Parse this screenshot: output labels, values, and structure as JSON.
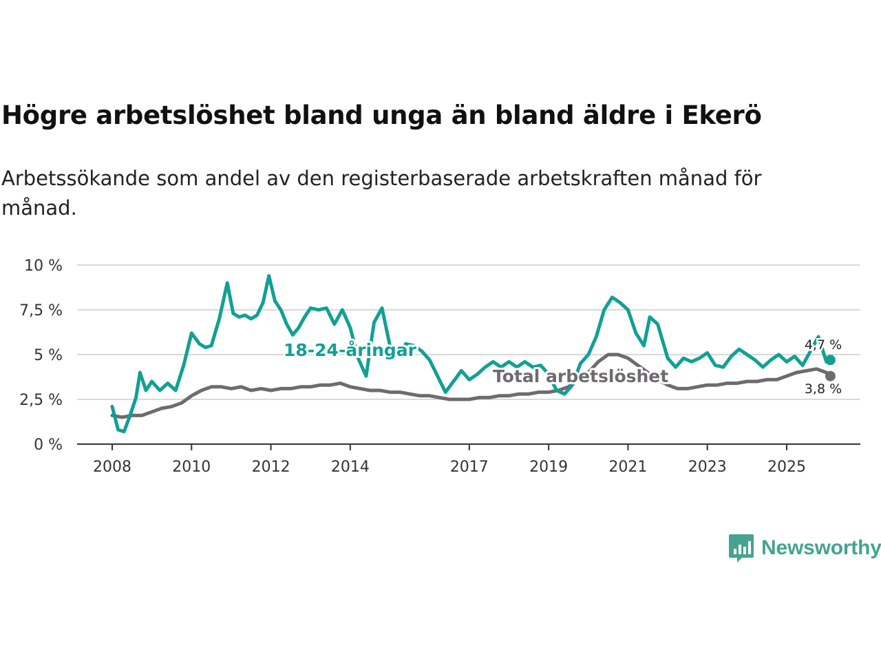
{
  "header": {
    "title": "Högre arbetslöshet bland unga än bland äldre i Ekerö",
    "subtitle": "Arbetssökande som andel av den registerbaserade arbetskraften månad för månad."
  },
  "brand": {
    "name": "Newsworthy",
    "icon": "newsworthy-logo-icon",
    "color": "#45a38f"
  },
  "chart_data": {
    "type": "line",
    "title": "Högre arbetslöshet bland unga än bland äldre i Ekerö",
    "ylim": [
      0,
      10
    ],
    "yticks": [
      0,
      2.5,
      5,
      7.5,
      10
    ],
    "ytick_labels": [
      "0 %",
      "2,5 %",
      "5 %",
      "7,5 %",
      "10 %"
    ],
    "xlim": [
      2008,
      2026.8
    ],
    "xticks": [
      2008,
      2010,
      2012,
      2014,
      2017,
      2019,
      2021,
      2023,
      2025
    ],
    "xtick_labels": [
      "2008",
      "2010",
      "2012",
      "2014",
      "2017",
      "2019",
      "2021",
      "2023",
      "2025"
    ],
    "grid": true,
    "series": [
      {
        "name": "Total arbetslöshet",
        "label": "Total arbetslöshet",
        "color": "#6e6b70",
        "end_label": "3,8 %",
        "end_value": 3.8,
        "points": [
          [
            2008.0,
            1.6
          ],
          [
            2008.25,
            1.5
          ],
          [
            2008.5,
            1.6
          ],
          [
            2008.75,
            1.6
          ],
          [
            2009.0,
            1.8
          ],
          [
            2009.25,
            2.0
          ],
          [
            2009.5,
            2.1
          ],
          [
            2009.75,
            2.3
          ],
          [
            2010.0,
            2.7
          ],
          [
            2010.25,
            3.0
          ],
          [
            2010.5,
            3.2
          ],
          [
            2010.75,
            3.2
          ],
          [
            2011.0,
            3.1
          ],
          [
            2011.25,
            3.2
          ],
          [
            2011.5,
            3.0
          ],
          [
            2011.75,
            3.1
          ],
          [
            2012.0,
            3.0
          ],
          [
            2012.25,
            3.1
          ],
          [
            2012.5,
            3.1
          ],
          [
            2012.75,
            3.2
          ],
          [
            2013.0,
            3.2
          ],
          [
            2013.25,
            3.3
          ],
          [
            2013.5,
            3.3
          ],
          [
            2013.75,
            3.4
          ],
          [
            2014.0,
            3.2
          ],
          [
            2014.25,
            3.1
          ],
          [
            2014.5,
            3.0
          ],
          [
            2014.75,
            3.0
          ],
          [
            2015.0,
            2.9
          ],
          [
            2015.25,
            2.9
          ],
          [
            2015.5,
            2.8
          ],
          [
            2015.75,
            2.7
          ],
          [
            2016.0,
            2.7
          ],
          [
            2016.25,
            2.6
          ],
          [
            2016.5,
            2.5
          ],
          [
            2016.75,
            2.5
          ],
          [
            2017.0,
            2.5
          ],
          [
            2017.25,
            2.6
          ],
          [
            2017.5,
            2.6
          ],
          [
            2017.75,
            2.7
          ],
          [
            2018.0,
            2.7
          ],
          [
            2018.25,
            2.8
          ],
          [
            2018.5,
            2.8
          ],
          [
            2018.75,
            2.9
          ],
          [
            2019.0,
            2.9
          ],
          [
            2019.25,
            3.0
          ],
          [
            2019.5,
            3.2
          ],
          [
            2019.75,
            3.6
          ],
          [
            2020.0,
            4.0
          ],
          [
            2020.25,
            4.6
          ],
          [
            2020.5,
            5.0
          ],
          [
            2020.75,
            5.0
          ],
          [
            2021.0,
            4.8
          ],
          [
            2021.25,
            4.4
          ],
          [
            2021.5,
            4.0
          ],
          [
            2021.75,
            3.6
          ],
          [
            2022.0,
            3.3
          ],
          [
            2022.25,
            3.1
          ],
          [
            2022.5,
            3.1
          ],
          [
            2022.75,
            3.2
          ],
          [
            2023.0,
            3.3
          ],
          [
            2023.25,
            3.3
          ],
          [
            2023.5,
            3.4
          ],
          [
            2023.75,
            3.4
          ],
          [
            2024.0,
            3.5
          ],
          [
            2024.25,
            3.5
          ],
          [
            2024.5,
            3.6
          ],
          [
            2024.75,
            3.6
          ],
          [
            2025.0,
            3.8
          ],
          [
            2025.25,
            4.0
          ],
          [
            2025.5,
            4.1
          ],
          [
            2025.75,
            4.2
          ],
          [
            2026.0,
            4.0
          ],
          [
            2026.1,
            3.8
          ]
        ]
      },
      {
        "name": "18-24-åringar",
        "label": "18-24-åringar",
        "color": "#12a093",
        "end_label": "4,7 %",
        "end_value": 4.7,
        "points": [
          [
            2008.0,
            2.1
          ],
          [
            2008.15,
            0.8
          ],
          [
            2008.3,
            0.7
          ],
          [
            2008.45,
            1.6
          ],
          [
            2008.6,
            2.6
          ],
          [
            2008.7,
            4.0
          ],
          [
            2008.85,
            3.0
          ],
          [
            2009.0,
            3.5
          ],
          [
            2009.2,
            3.0
          ],
          [
            2009.4,
            3.4
          ],
          [
            2009.6,
            3.0
          ],
          [
            2009.8,
            4.4
          ],
          [
            2010.0,
            6.2
          ],
          [
            2010.2,
            5.6
          ],
          [
            2010.35,
            5.4
          ],
          [
            2010.5,
            5.5
          ],
          [
            2010.7,
            7.0
          ],
          [
            2010.9,
            9.0
          ],
          [
            2011.05,
            7.3
          ],
          [
            2011.2,
            7.1
          ],
          [
            2011.35,
            7.2
          ],
          [
            2011.5,
            7.0
          ],
          [
            2011.65,
            7.2
          ],
          [
            2011.8,
            7.9
          ],
          [
            2011.95,
            9.4
          ],
          [
            2012.1,
            8.0
          ],
          [
            2012.25,
            7.5
          ],
          [
            2012.4,
            6.7
          ],
          [
            2012.55,
            6.1
          ],
          [
            2012.7,
            6.5
          ],
          [
            2012.85,
            7.1
          ],
          [
            2013.0,
            7.6
          ],
          [
            2013.2,
            7.5
          ],
          [
            2013.4,
            7.6
          ],
          [
            2013.6,
            6.7
          ],
          [
            2013.8,
            7.5
          ],
          [
            2014.0,
            6.5
          ],
          [
            2014.2,
            4.8
          ],
          [
            2014.4,
            3.8
          ],
          [
            2014.6,
            6.8
          ],
          [
            2014.8,
            7.6
          ],
          [
            2015.0,
            5.5
          ],
          [
            2015.2,
            5.0
          ],
          [
            2015.4,
            5.6
          ],
          [
            2015.6,
            5.5
          ],
          [
            2015.8,
            5.2
          ],
          [
            2016.0,
            4.7
          ],
          [
            2016.2,
            3.8
          ],
          [
            2016.4,
            2.9
          ],
          [
            2016.6,
            3.5
          ],
          [
            2016.8,
            4.1
          ],
          [
            2017.0,
            3.6
          ],
          [
            2017.2,
            3.9
          ],
          [
            2017.4,
            4.3
          ],
          [
            2017.6,
            4.6
          ],
          [
            2017.8,
            4.3
          ],
          [
            2018.0,
            4.6
          ],
          [
            2018.2,
            4.3
          ],
          [
            2018.4,
            4.6
          ],
          [
            2018.6,
            4.3
          ],
          [
            2018.8,
            4.4
          ],
          [
            2019.0,
            3.9
          ],
          [
            2019.2,
            3.0
          ],
          [
            2019.4,
            2.8
          ],
          [
            2019.6,
            3.3
          ],
          [
            2019.8,
            4.5
          ],
          [
            2020.0,
            5.0
          ],
          [
            2020.2,
            6.0
          ],
          [
            2020.4,
            7.5
          ],
          [
            2020.6,
            8.2
          ],
          [
            2020.8,
            7.9
          ],
          [
            2021.0,
            7.5
          ],
          [
            2021.2,
            6.2
          ],
          [
            2021.4,
            5.5
          ],
          [
            2021.55,
            7.1
          ],
          [
            2021.75,
            6.7
          ],
          [
            2022.0,
            4.8
          ],
          [
            2022.2,
            4.3
          ],
          [
            2022.4,
            4.8
          ],
          [
            2022.6,
            4.6
          ],
          [
            2022.8,
            4.8
          ],
          [
            2023.0,
            5.1
          ],
          [
            2023.2,
            4.4
          ],
          [
            2023.4,
            4.3
          ],
          [
            2023.6,
            4.9
          ],
          [
            2023.8,
            5.3
          ],
          [
            2024.0,
            5.0
          ],
          [
            2024.2,
            4.7
          ],
          [
            2024.4,
            4.3
          ],
          [
            2024.6,
            4.7
          ],
          [
            2024.8,
            5.0
          ],
          [
            2025.0,
            4.6
          ],
          [
            2025.2,
            4.9
          ],
          [
            2025.4,
            4.4
          ],
          [
            2025.6,
            5.2
          ],
          [
            2025.8,
            6.0
          ],
          [
            2026.0,
            4.6
          ],
          [
            2026.1,
            4.7
          ]
        ]
      }
    ]
  }
}
